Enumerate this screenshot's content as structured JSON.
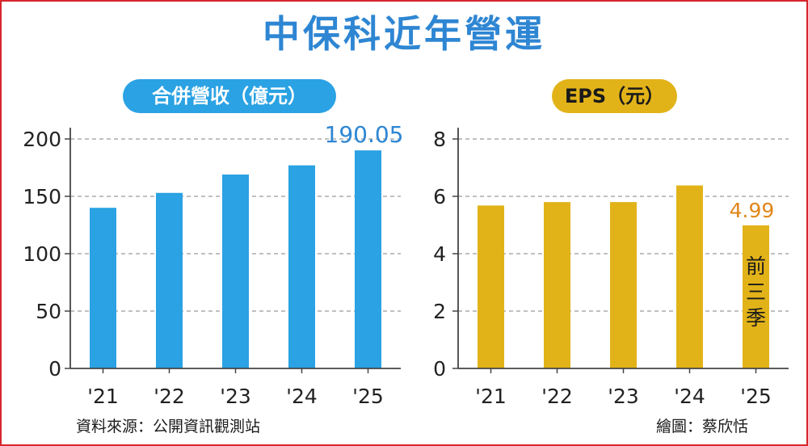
{
  "title": "中保科近年營運",
  "source": "資料來源：公開資訊觀測站",
  "credit": "繪圖：蔡欣恬",
  "colors": {
    "revenue_bar": "#2aa2e3",
    "eps_bar": "#e2b319",
    "title": "#2e86d3",
    "eps_label": "#e0861a",
    "frame": "#d8262e"
  },
  "chart_data": [
    {
      "type": "bar",
      "title": "合併營收（億元）",
      "categories": [
        "'21",
        "'22",
        "'23",
        "'24",
        "'25"
      ],
      "values": [
        140,
        153,
        169,
        177,
        190.05
      ],
      "ylim": [
        0,
        200
      ],
      "yticks": [
        0,
        50,
        100,
        150,
        200
      ],
      "grid": true,
      "annotations": [
        {
          "category": "'25",
          "text": "190.05"
        }
      ]
    },
    {
      "type": "bar",
      "title": "EPS（元）",
      "categories": [
        "'21",
        "'22",
        "'23",
        "'24",
        "'25"
      ],
      "values": [
        5.68,
        5.8,
        5.8,
        6.38,
        4.99
      ],
      "ylim": [
        0,
        8
      ],
      "yticks": [
        0,
        2,
        4,
        6,
        8
      ],
      "grid": true,
      "annotations": [
        {
          "category": "'25",
          "text": "4.99"
        },
        {
          "category": "'25",
          "text": "前三季"
        }
      ]
    }
  ]
}
